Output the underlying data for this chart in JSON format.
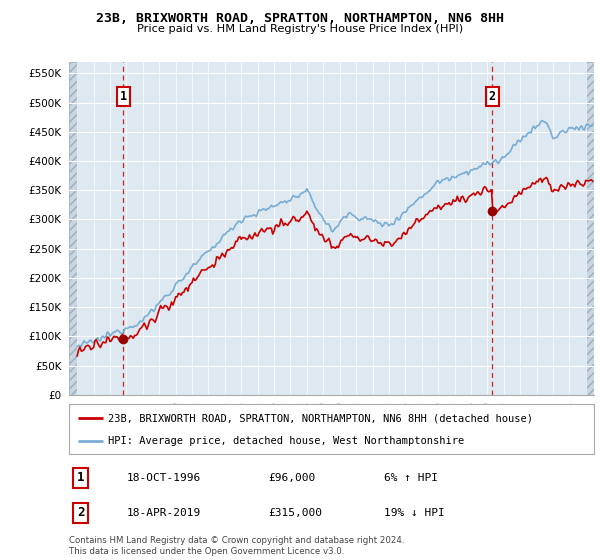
{
  "title1": "23B, BRIXWORTH ROAD, SPRATTON, NORTHAMPTON, NN6 8HH",
  "title2": "Price paid vs. HM Land Registry's House Price Index (HPI)",
  "legend_line1": "23B, BRIXWORTH ROAD, SPRATTON, NORTHAMPTON, NN6 8HH (detached house)",
  "legend_line2": "HPI: Average price, detached house, West Northamptonshire",
  "annotation1_date": "18-OCT-1996",
  "annotation1_price": "£96,000",
  "annotation1_hpi": "6% ↑ HPI",
  "annotation2_date": "18-APR-2019",
  "annotation2_price": "£315,000",
  "annotation2_hpi": "19% ↓ HPI",
  "copyright": "Contains HM Land Registry data © Crown copyright and database right 2024.\nThis data is licensed under the Open Government Licence v3.0.",
  "sale1_year": 1996.8,
  "sale1_price": 96000,
  "sale2_year": 2019.3,
  "sale2_price": 315000,
  "hpi_line_color": "#7aadd4",
  "price_line_color": "#cc0000",
  "sale_dot_color": "#990000",
  "bg_plot_color": "#dde8f0",
  "grid_color": "#ffffff",
  "ylim_min": 0,
  "ylim_max": 570000,
  "xlim_min": 1993.5,
  "xlim_max": 2025.5,
  "hatch_xleft_end": 1994.0,
  "hatch_xright_start": 2025.0
}
